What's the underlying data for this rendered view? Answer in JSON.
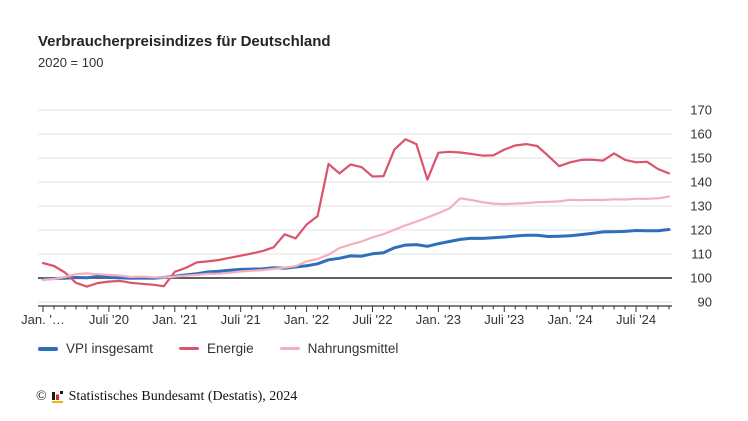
{
  "header": {
    "title": "Verbraucherpreisindizes für Deutschland",
    "subtitle": "2020 = 100"
  },
  "chart_data": {
    "type": "line",
    "title": "Verbraucherpreisindizes für Deutschland",
    "subtitle": "2020 = 100",
    "grid": true,
    "legend_position": "bottom",
    "ylim": [
      90,
      170
    ],
    "y_ticks": [
      90,
      100,
      110,
      120,
      130,
      140,
      150,
      160,
      170
    ],
    "baseline_value": 100,
    "x_tick_labels": [
      "Jan. '…",
      "Juli '20",
      "Jan. '21",
      "Juli '21",
      "Jan. '22",
      "Juli '22",
      "Jan. '23",
      "Juli '23",
      "Jan. '24",
      "Juli '24"
    ],
    "x_tick_indices": [
      0,
      6,
      12,
      18,
      24,
      30,
      36,
      42,
      48,
      54
    ],
    "x_months": [
      "Jan. '20",
      "Feb. '20",
      "März '20",
      "Apr. '20",
      "Mai '20",
      "Juni '20",
      "Juli '20",
      "Aug. '20",
      "Sep. '20",
      "Okt. '20",
      "Nov. '20",
      "Dez. '20",
      "Jan. '21",
      "Feb. '21",
      "März '21",
      "Apr. '21",
      "Mai '21",
      "Juni '21",
      "Juli '21",
      "Aug. '21",
      "Sep. '21",
      "Okt. '21",
      "Nov. '21",
      "Dez. '21",
      "Jan. '22",
      "Feb. '22",
      "März '22",
      "Apr. '22",
      "Mai '22",
      "Juni '22",
      "Juli '22",
      "Aug. '22",
      "Sep. '22",
      "Okt. '22",
      "Nov. '22",
      "Dez. '22",
      "Jan. '23",
      "Feb. '23",
      "März '23",
      "Apr. '23",
      "Mai '23",
      "Juni '23",
      "Juli '23",
      "Aug. '23",
      "Sep. '23",
      "Okt. '23",
      "Nov. '23",
      "Dez. '23",
      "Jan. '24",
      "Feb. '24",
      "März '24",
      "Apr. '24",
      "Mai '24",
      "Juni '24",
      "Juli '24",
      "Aug. '24",
      "Sep. '24",
      "Okt. '24"
    ],
    "series": [
      {
        "name": "VPI insgesamt",
        "color": "#2f6eb8",
        "stroke_width": 3,
        "values": [
          99.5,
          99.8,
          99.9,
          100.2,
          100.1,
          100.7,
          100.2,
          100.1,
          99.9,
          100.0,
          99.9,
          100.2,
          100.7,
          101.3,
          101.8,
          102.5,
          102.8,
          103.2,
          103.6,
          103.7,
          103.8,
          104.3,
          104.1,
          104.6,
          105.1,
          105.9,
          107.6,
          108.2,
          109.2,
          109.1,
          110.1,
          110.5,
          112.6,
          113.7,
          113.9,
          113.2,
          114.3,
          115.2,
          116.1,
          116.6,
          116.5,
          116.8,
          117.1,
          117.5,
          117.8,
          117.8,
          117.3,
          117.4,
          117.6,
          118.1,
          118.6,
          119.2,
          119.3,
          119.4,
          119.8,
          119.7,
          119.7,
          120.2
        ]
      },
      {
        "name": "Energie",
        "color": "#d9546c",
        "stroke_width": 2.2,
        "values": [
          106.2,
          105.0,
          102.3,
          98.0,
          96.4,
          97.9,
          98.5,
          98.8,
          98.0,
          97.6,
          97.2,
          96.6,
          102.6,
          104.2,
          106.5,
          106.9,
          107.5,
          108.4,
          109.3,
          110.2,
          111.2,
          112.8,
          118.2,
          116.5,
          122.3,
          125.8,
          147.5,
          143.6,
          147.3,
          146.2,
          142.3,
          142.4,
          153.5,
          157.8,
          155.8,
          141.0,
          152.2,
          152.6,
          152.3,
          151.7,
          151.0,
          151.1,
          153.5,
          155.2,
          155.8,
          155.0,
          150.9,
          146.6,
          148.2,
          149.2,
          149.3,
          148.9,
          151.9,
          149.2,
          148.2,
          148.4,
          145.4,
          143.6
        ]
      },
      {
        "name": "Nahrungsmittel",
        "color": "#f6aebc",
        "stroke_width": 2.2,
        "values": [
          99.2,
          99.6,
          100.4,
          101.6,
          101.9,
          101.6,
          101.3,
          101.0,
          100.4,
          100.6,
          100.3,
          100.2,
          100.6,
          101.0,
          101.3,
          101.7,
          101.8,
          102.2,
          102.7,
          103.0,
          103.3,
          103.8,
          104.3,
          104.9,
          106.9,
          107.9,
          109.7,
          112.5,
          113.9,
          115.2,
          116.9,
          118.3,
          120.1,
          121.9,
          123.5,
          125.2,
          127.0,
          129.0,
          133.2,
          132.5,
          131.6,
          131.0,
          130.8,
          131.0,
          131.2,
          131.6,
          131.7,
          131.9,
          132.6,
          132.4,
          132.6,
          132.5,
          132.8,
          132.7,
          133.0,
          133.0,
          133.2,
          133.9
        ]
      }
    ],
    "colors": {
      "grid": "#e3e3e3",
      "baseline": "#4a4a4a",
      "axis": "#333333",
      "tick_text": "#333333"
    }
  },
  "footer": {
    "copyright_symbol": "©",
    "source": "Statistisches Bundesamt (Destatis), 2024",
    "logo_icon": "destatis-bar-chart-logo",
    "logo_colors": {
      "black": "#1a1a1a",
      "red": "#cc2b36",
      "gold": "#f0b400"
    }
  }
}
